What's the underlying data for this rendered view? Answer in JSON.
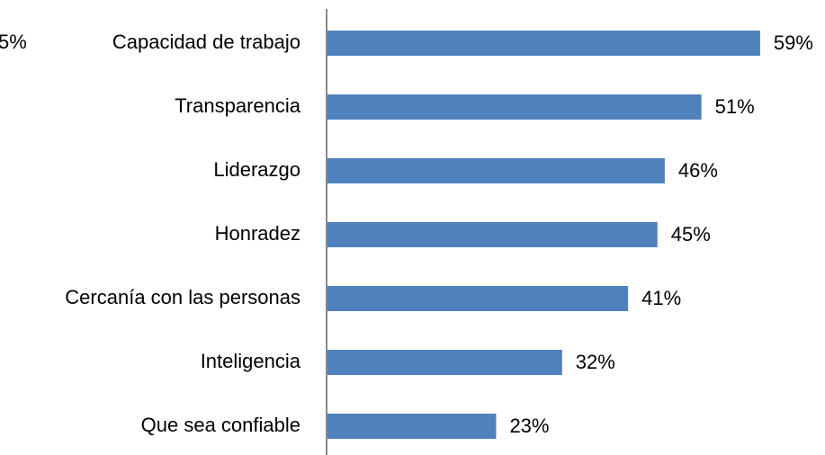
{
  "chart_data": {
    "type": "bar",
    "orientation": "horizontal",
    "annotation": "5%",
    "categories": [
      "Capacidad de trabajo",
      "Transparencia",
      "Liderazgo",
      "Honradez",
      "Cercanía con las personas",
      "Inteligencia",
      "Que sea confiable"
    ],
    "values": [
      59,
      51,
      46,
      45,
      41,
      32,
      23
    ],
    "value_labels": [
      "59%",
      "51%",
      "46%",
      "45%",
      "41%",
      "32%",
      "23%"
    ],
    "color": "#4f81bd",
    "xlim": [
      0,
      60
    ]
  }
}
